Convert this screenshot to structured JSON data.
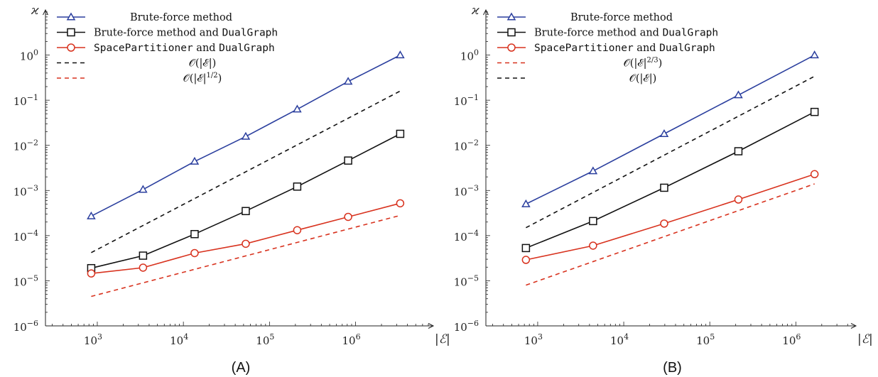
{
  "chart_data": [
    {
      "type": "line",
      "panel_label": "(A)",
      "xlabel": "|ℰ|",
      "ylabel": "ϰ",
      "xscale": "log",
      "yscale": "log",
      "xlim": [
        250,
        8000000
      ],
      "ylim": [
        1e-06,
        10
      ],
      "x_ticks": [
        {
          "value": 1000,
          "label": "10",
          "exp": "3"
        },
        {
          "value": 10000,
          "label": "10",
          "exp": "4"
        },
        {
          "value": 100000,
          "label": "10",
          "exp": "5"
        },
        {
          "value": 1000000,
          "label": "10",
          "exp": "6"
        }
      ],
      "y_ticks": [
        {
          "value": 1e-06,
          "label": "10",
          "exp": "−6"
        },
        {
          "value": 1e-05,
          "label": "10",
          "exp": "−5"
        },
        {
          "value": 0.0001,
          "label": "10",
          "exp": "−4"
        },
        {
          "value": 0.001,
          "label": "10",
          "exp": "−3"
        },
        {
          "value": 0.01,
          "label": "10",
          "exp": "−2"
        },
        {
          "value": 0.1,
          "label": "10",
          "exp": "−1"
        },
        {
          "value": 1,
          "label": "10",
          "exp": "0"
        }
      ],
      "legend_position": "top-left",
      "series": [
        {
          "name": "Brute-force method",
          "name_parts": [
            {
              "text": "Brute-force method",
              "mono": false
            }
          ],
          "color": "#2b3f9e",
          "marker": "triangle",
          "dashed": false,
          "x": [
            850,
            3400,
            13500,
            53000,
            210000,
            820000,
            3300000
          ],
          "y": [
            0.00027,
            0.00105,
            0.0044,
            0.0157,
            0.063,
            0.26,
            1.0
          ]
        },
        {
          "name": "Brute-force method and DualGraph",
          "name_parts": [
            {
              "text": "Brute-force method and ",
              "mono": false
            },
            {
              "text": "DualGraph",
              "mono": true
            }
          ],
          "color": "#111111",
          "marker": "square",
          "dashed": false,
          "x": [
            850,
            3400,
            13500,
            53000,
            210000,
            820000,
            3300000
          ],
          "y": [
            1.9e-05,
            3.6e-05,
            0.000108,
            0.00035,
            0.00122,
            0.0046,
            0.018
          ]
        },
        {
          "name": "SpacePartitioner and DualGraph",
          "name_parts": [
            {
              "text": "SpacePartitioner",
              "mono": true
            },
            {
              "text": " and ",
              "mono": false
            },
            {
              "text": "DualGraph",
              "mono": true
            }
          ],
          "color": "#d8321e",
          "marker": "circle",
          "dashed": false,
          "x": [
            850,
            3400,
            13500,
            53000,
            210000,
            820000,
            3300000
          ],
          "y": [
            1.45e-05,
            1.95e-05,
            4.1e-05,
            6.6e-05,
            0.000132,
            0.00026,
            0.00052
          ]
        },
        {
          "name": "𝒪(|ℰ|)",
          "name_parts": [
            {
              "text": "𝒪(|ℰ|)",
              "mono": false
            }
          ],
          "color": "#111111",
          "marker": "none",
          "dashed": true,
          "x": [
            850,
            3300000
          ],
          "y": [
            4.2e-05,
            0.16
          ]
        },
        {
          "name": "𝒪(|ℰ|¹ᐟ²)",
          "name_parts": [
            {
              "text": "𝒪(|ℰ|",
              "mono": false
            },
            {
              "text": "1/2",
              "sup": true
            },
            {
              "text": ")",
              "mono": false
            }
          ],
          "color": "#d8321e",
          "marker": "none",
          "dashed": true,
          "x": [
            850,
            3300000
          ],
          "y": [
            4.5e-06,
            0.00028
          ]
        }
      ]
    },
    {
      "type": "line",
      "panel_label": "(B)",
      "xlabel": "|ℰ|",
      "ylabel": "ϰ",
      "xscale": "log",
      "yscale": "log",
      "xlim": [
        250,
        5000000
      ],
      "ylim": [
        1e-06,
        10
      ],
      "x_ticks": [
        {
          "value": 1000,
          "label": "10",
          "exp": "3"
        },
        {
          "value": 10000,
          "label": "10",
          "exp": "4"
        },
        {
          "value": 100000,
          "label": "10",
          "exp": "5"
        },
        {
          "value": 1000000,
          "label": "10",
          "exp": "6"
        }
      ],
      "y_ticks": [
        {
          "value": 1e-06,
          "label": "10",
          "exp": "−6"
        },
        {
          "value": 1e-05,
          "label": "10",
          "exp": "−5"
        },
        {
          "value": 0.0001,
          "label": "10",
          "exp": "−4"
        },
        {
          "value": 0.001,
          "label": "10",
          "exp": "−3"
        },
        {
          "value": 0.01,
          "label": "10",
          "exp": "−2"
        },
        {
          "value": 0.1,
          "label": "10",
          "exp": "−1"
        },
        {
          "value": 1,
          "label": "10",
          "exp": "0"
        }
      ],
      "legend_position": "top-left",
      "series": [
        {
          "name": "Brute-force method",
          "name_parts": [
            {
              "text": "Brute-force method",
              "mono": false
            }
          ],
          "color": "#2b3f9e",
          "marker": "triangle",
          "dashed": false,
          "x": [
            730,
            4400,
            29500,
            215000,
            1650000
          ],
          "y": [
            0.0005,
            0.0027,
            0.018,
            0.13,
            1.0
          ]
        },
        {
          "name": "Brute-force method and DualGraph",
          "name_parts": [
            {
              "text": "Brute-force method and ",
              "mono": false
            },
            {
              "text": "DualGraph",
              "mono": true
            }
          ],
          "color": "#111111",
          "marker": "square",
          "dashed": false,
          "x": [
            730,
            4400,
            29500,
            215000,
            1650000
          ],
          "y": [
            5.3e-05,
            0.00021,
            0.00115,
            0.0074,
            0.055
          ]
        },
        {
          "name": "SpacePartitioner and DualGraph",
          "name_parts": [
            {
              "text": "SpacePartitioner",
              "mono": true
            },
            {
              "text": " and ",
              "mono": false
            },
            {
              "text": "DualGraph",
              "mono": true
            }
          ],
          "color": "#d8321e",
          "marker": "circle",
          "dashed": false,
          "x": [
            730,
            4400,
            29500,
            215000,
            1650000
          ],
          "y": [
            2.9e-05,
            6e-05,
            0.000185,
            0.00063,
            0.0023
          ]
        },
        {
          "name": "𝒪(|ℰ|²ᐟ³)",
          "name_parts": [
            {
              "text": "𝒪(|ℰ|",
              "mono": false
            },
            {
              "text": "2/3",
              "sup": true
            },
            {
              "text": ")",
              "mono": false
            }
          ],
          "color": "#d8321e",
          "marker": "none",
          "dashed": true,
          "x": [
            730,
            1650000
          ],
          "y": [
            8e-06,
            0.0014
          ]
        },
        {
          "name": "𝒪(|ℰ|)",
          "name_parts": [
            {
              "text": "𝒪(|ℰ|)",
              "mono": false
            }
          ],
          "color": "#111111",
          "marker": "none",
          "dashed": true,
          "x": [
            730,
            1650000
          ],
          "y": [
            0.00015,
            0.34
          ]
        }
      ]
    }
  ]
}
